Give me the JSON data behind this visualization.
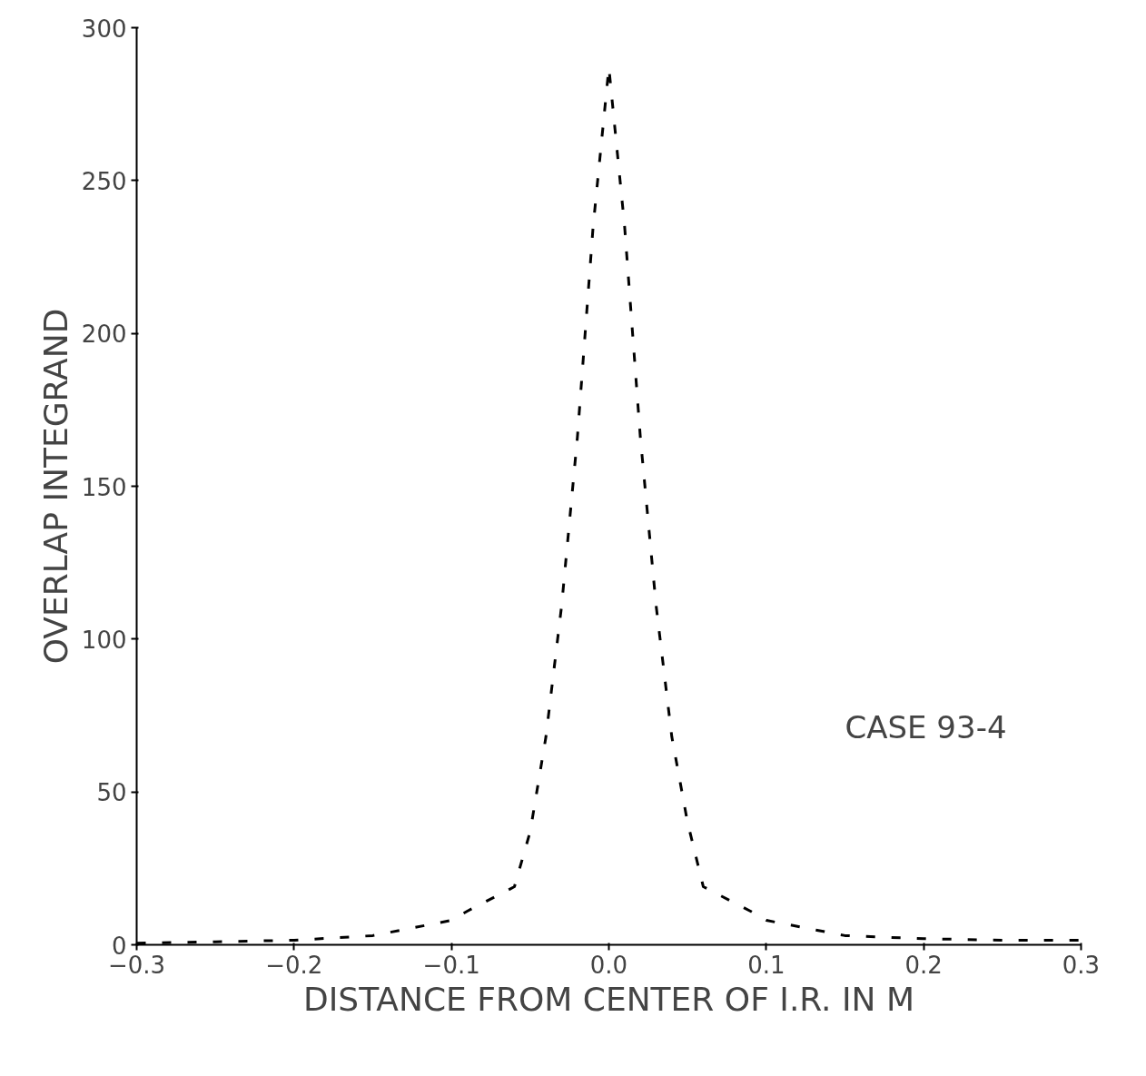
{
  "chart_data": {
    "type": "line",
    "xlabel": "DISTANCE FROM CENTER OF I.R. IN M",
    "ylabel": "OVERLAP INTEGRAND",
    "x": [
      -0.3,
      -0.25,
      -0.2,
      -0.15,
      -0.1,
      -0.09,
      -0.06,
      -0.05,
      -0.04,
      -0.03,
      -0.02,
      -0.01,
      0,
      0.01,
      0.02,
      0.03,
      0.04,
      0.05,
      0.06,
      0.09,
      0.1,
      0.15,
      0.2,
      0.25,
      0.3
    ],
    "series": [
      {
        "color": "#000000",
        "values": [
          0.5,
          1,
          1.5,
          3,
          8,
          11,
          19,
          37,
          68,
          111,
          166,
          235,
          287,
          235,
          166,
          111,
          68,
          40,
          19,
          11,
          8,
          3,
          2,
          1.5,
          1.5
        ]
      }
    ],
    "xlim": [
      -0.3,
      0.3
    ],
    "ylim": [
      0,
      300
    ],
    "xticks": [
      {
        "value": -0.3,
        "label": "−0.3"
      },
      {
        "value": -0.2,
        "label": "−0.2"
      },
      {
        "value": -0.1,
        "label": "−0.1"
      },
      {
        "value": 0,
        "label": "0.0"
      },
      0.1,
      0.2,
      0.3
    ],
    "yticks": [
      0,
      50,
      100,
      150,
      200,
      250,
      300
    ],
    "line_style": "dashed",
    "marker": "none",
    "grid": false,
    "annotations": [
      "CASE 93-4"
    ]
  }
}
